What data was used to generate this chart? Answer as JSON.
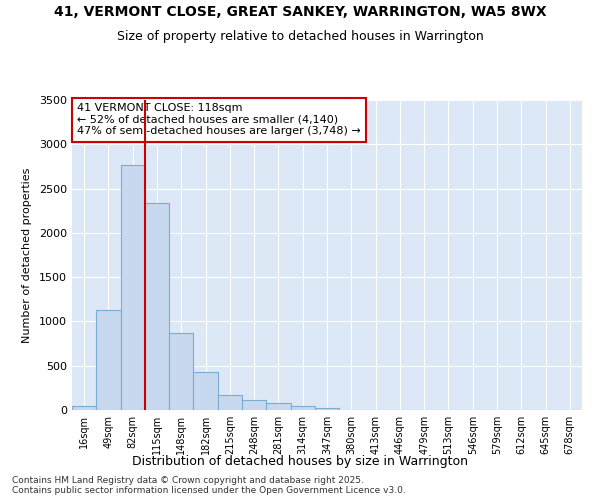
{
  "title": "41, VERMONT CLOSE, GREAT SANKEY, WARRINGTON, WA5 8WX",
  "subtitle": "Size of property relative to detached houses in Warrington",
  "xlabel": "Distribution of detached houses by size in Warrington",
  "ylabel": "Number of detached properties",
  "bar_labels": [
    "16sqm",
    "49sqm",
    "82sqm",
    "115sqm",
    "148sqm",
    "182sqm",
    "215sqm",
    "248sqm",
    "281sqm",
    "314sqm",
    "347sqm",
    "380sqm",
    "413sqm",
    "446sqm",
    "479sqm",
    "513sqm",
    "546sqm",
    "579sqm",
    "612sqm",
    "645sqm",
    "678sqm"
  ],
  "bar_values": [
    50,
    1130,
    2770,
    2340,
    870,
    430,
    170,
    110,
    80,
    50,
    20,
    5,
    0,
    0,
    0,
    0,
    0,
    0,
    0,
    0,
    0
  ],
  "bar_color": "#c8d8ee",
  "bar_edge_color": "#7aadd4",
  "property_line_index": 3,
  "property_line_color": "#cc0000",
  "annotation_title": "41 VERMONT CLOSE: 118sqm",
  "annotation_line1": "← 52% of detached houses are smaller (4,140)",
  "annotation_line2": "47% of semi-detached houses are larger (3,748) →",
  "annotation_box_color": "#cc0000",
  "ylim": [
    0,
    3500
  ],
  "yticks": [
    0,
    500,
    1000,
    1500,
    2000,
    2500,
    3000,
    3500
  ],
  "footnote1": "Contains HM Land Registry data © Crown copyright and database right 2025.",
  "footnote2": "Contains public sector information licensed under the Open Government Licence v3.0.",
  "bg_color": "#ffffff",
  "plot_bg_color": "#dce8f5"
}
